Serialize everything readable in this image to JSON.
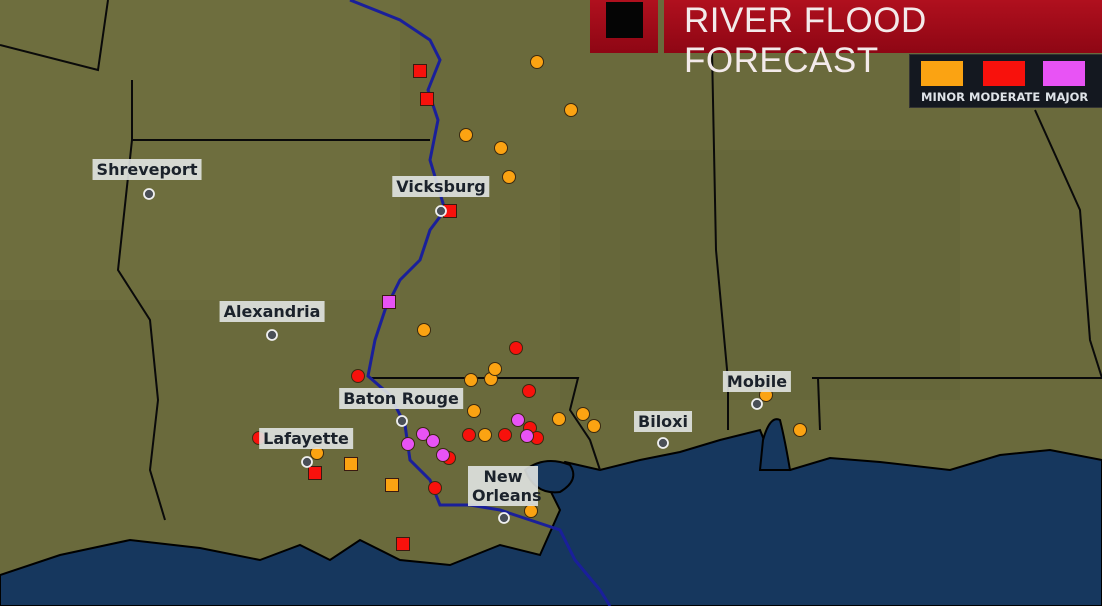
{
  "header": {
    "title": "RIVER FLOOD FORECAST"
  },
  "legend": {
    "items": [
      {
        "label": "MINOR",
        "color": "#fba312"
      },
      {
        "label": "MODERATE",
        "color": "#f8110c"
      },
      {
        "label": "MAJOR",
        "color": "#e853f5"
      }
    ]
  },
  "colors": {
    "land": "#6a6a3c",
    "water": "#16375e",
    "river": "#1a1f9a",
    "border": "#0a0a0a"
  },
  "cities": [
    {
      "name": "Shreveport"
    },
    {
      "name": "Vicksburg"
    },
    {
      "name": "Alexandria"
    },
    {
      "name": "Baton Rouge"
    },
    {
      "name": "Lafayette"
    },
    {
      "name": "New Orleans"
    },
    {
      "name": "Biloxi"
    },
    {
      "name": "Mobile"
    }
  ],
  "gauges": {
    "squares": [
      "moderate",
      "moderate",
      "moderate",
      "moderate",
      "moderate",
      "major",
      "minor",
      "minor"
    ],
    "circles": [
      "minor",
      "minor",
      "minor",
      "minor",
      "minor",
      "minor",
      "minor",
      "minor",
      "minor",
      "minor",
      "minor",
      "minor",
      "minor",
      "minor",
      "minor",
      "minor",
      "minor",
      "minor",
      "moderate",
      "moderate",
      "moderate",
      "moderate",
      "moderate",
      "moderate",
      "moderate",
      "moderate",
      "moderate",
      "moderate",
      "major",
      "major",
      "major",
      "major",
      "major",
      "major"
    ]
  }
}
